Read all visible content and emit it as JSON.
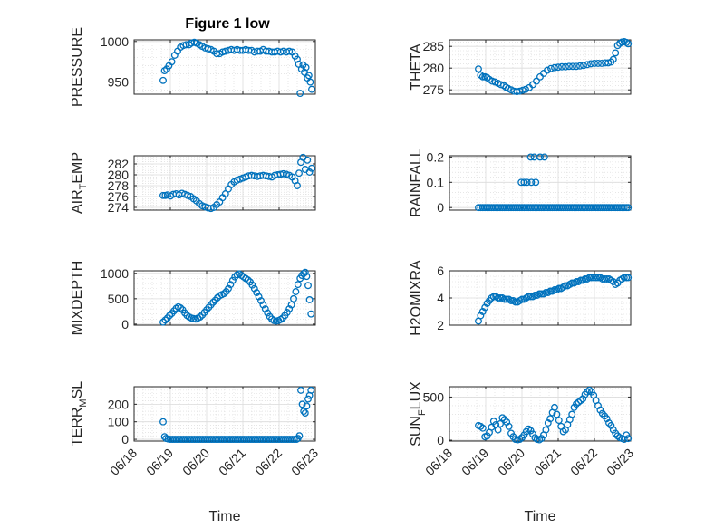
{
  "title": "Figure 1 low",
  "shared_x": {
    "label": "Time",
    "ticks": [
      "06/18",
      "06/19",
      "06/20",
      "06/21",
      "06/22",
      "06/23"
    ]
  },
  "chart_data": [
    {
      "type": "scatter",
      "ylabel": "PRESSURE",
      "ylim": [
        935,
        1002
      ],
      "yticks": [
        "950",
        "1000"
      ],
      "ytick_values": [
        950,
        1000
      ],
      "x_unit": "days since 06/18",
      "x": [
        0.8,
        0.84,
        0.9,
        0.96,
        1.04,
        1.12,
        1.2,
        1.28,
        1.36,
        1.44,
        1.52,
        1.58,
        1.66,
        1.72,
        1.8,
        1.88,
        1.96,
        2.04,
        2.12,
        2.2,
        2.28,
        2.36,
        2.44,
        2.52,
        2.6,
        2.68,
        2.76,
        2.84,
        2.92,
        3.0,
        3.08,
        3.16,
        3.24,
        3.32,
        3.4,
        3.48,
        3.56,
        3.64,
        3.72,
        3.8,
        3.88,
        3.96,
        4.04,
        4.12,
        4.2,
        4.28,
        4.36,
        4.44,
        4.5,
        4.54,
        4.58,
        4.62,
        4.66,
        4.7,
        4.74,
        4.78,
        4.82,
        4.86,
        4.9
      ],
      "y": [
        952,
        964,
        966,
        970,
        975,
        983,
        988,
        993,
        995,
        996,
        996,
        998,
        999,
        998,
        996,
        994,
        992,
        991,
        990,
        988,
        985,
        985,
        987,
        988,
        989,
        990,
        989,
        990,
        989,
        989,
        990,
        989,
        989,
        987,
        988,
        988,
        990,
        988,
        988,
        987,
        987,
        988,
        987,
        988,
        987,
        988,
        987,
        982,
        978,
        972,
        936,
        966,
        971,
        962,
        968,
        955,
        958,
        950,
        941
      ]
    },
    {
      "type": "scatter",
      "ylabel": "THETA",
      "ylim": [
        274,
        286.5
      ],
      "yticks": [
        "275",
        "280",
        "285"
      ],
      "ytick_values": [
        275,
        280,
        285
      ],
      "x_unit": "days since 06/18",
      "x": [
        0.8,
        0.86,
        0.92,
        0.98,
        1.04,
        1.1,
        1.18,
        1.26,
        1.34,
        1.42,
        1.5,
        1.56,
        1.62,
        1.7,
        1.78,
        1.86,
        1.94,
        2.02,
        2.1,
        2.2,
        2.3,
        2.4,
        2.5,
        2.6,
        2.7,
        2.8,
        2.9,
        3.0,
        3.1,
        3.2,
        3.3,
        3.4,
        3.5,
        3.6,
        3.7,
        3.8,
        3.9,
        4.0,
        4.1,
        4.2,
        4.3,
        4.38,
        4.46,
        4.52,
        4.58,
        4.64,
        4.7,
        4.76,
        4.82,
        4.88,
        4.93
      ],
      "y": [
        279.8,
        278.4,
        278.0,
        278.0,
        277.8,
        277.4,
        277.0,
        276.8,
        276.5,
        276.2,
        276.0,
        275.6,
        275.3,
        275.0,
        274.7,
        274.6,
        274.7,
        274.9,
        275.1,
        275.5,
        276.2,
        277.0,
        278.0,
        278.8,
        279.5,
        279.9,
        280.1,
        280.2,
        280.3,
        280.3,
        280.4,
        280.4,
        280.4,
        280.5,
        280.6,
        280.8,
        281.0,
        281.1,
        281.1,
        281.1,
        281.2,
        281.2,
        281.4,
        282.0,
        283.5,
        285.2,
        285.7,
        286.0,
        286.1,
        285.9,
        285.6
      ]
    },
    {
      "type": "scatter",
      "ylabel": "AIR_TEMP",
      "ylim": [
        273.5,
        283.5
      ],
      "yticks": [
        "274",
        "276",
        "278",
        "280",
        "282"
      ],
      "ytick_values": [
        274,
        276,
        278,
        280,
        282
      ],
      "x_unit": "days since 06/18",
      "x": [
        0.8,
        0.86,
        0.92,
        1.0,
        1.08,
        1.16,
        1.24,
        1.32,
        1.4,
        1.48,
        1.56,
        1.64,
        1.72,
        1.8,
        1.88,
        1.96,
        2.04,
        2.12,
        2.2,
        2.28,
        2.36,
        2.44,
        2.52,
        2.6,
        2.68,
        2.76,
        2.84,
        2.92,
        3.0,
        3.08,
        3.16,
        3.24,
        3.32,
        3.4,
        3.48,
        3.56,
        3.64,
        3.72,
        3.8,
        3.88,
        3.96,
        4.04,
        4.12,
        4.2,
        4.28,
        4.36,
        4.44,
        4.5,
        4.55,
        4.6,
        4.66,
        4.72,
        4.78,
        4.84,
        4.9
      ],
      "y": [
        276.2,
        276.2,
        276.3,
        276.1,
        276.4,
        276.5,
        276.3,
        276.6,
        276.4,
        276.2,
        276.0,
        275.6,
        275.2,
        274.7,
        274.3,
        274.1,
        273.9,
        273.8,
        274.0,
        274.5,
        275.0,
        275.8,
        276.5,
        277.4,
        278.2,
        278.7,
        279.0,
        279.2,
        279.4,
        279.6,
        279.8,
        279.9,
        279.8,
        279.7,
        279.8,
        279.9,
        279.8,
        279.7,
        279.6,
        279.9,
        280.0,
        280.1,
        280.2,
        280.1,
        279.9,
        279.6,
        278.9,
        278.0,
        280.3,
        282.3,
        283.2,
        281.0,
        282.7,
        280.5,
        281.2
      ]
    },
    {
      "type": "scatter",
      "ylabel": "RAINFALL",
      "ylim": [
        -0.01,
        0.205
      ],
      "yticks": [
        "0",
        "0.1",
        "0.2"
      ],
      "ytick_values": [
        0,
        0.1,
        0.2
      ],
      "x_unit": "days since 06/18",
      "x": [
        0.8,
        0.86,
        0.92,
        0.98,
        1.04,
        1.1,
        1.16,
        1.22,
        1.28,
        1.34,
        1.4,
        1.46,
        1.52,
        1.58,
        1.64,
        1.7,
        1.76,
        1.82,
        1.88,
        1.94,
        2.0,
        2.06,
        2.12,
        2.18,
        2.24,
        2.3,
        2.36,
        2.42,
        2.48,
        2.54,
        2.6,
        2.66,
        2.72,
        2.78,
        2.84,
        2.9,
        2.96,
        3.02,
        3.08,
        3.14,
        3.2,
        3.26,
        3.32,
        3.38,
        3.44,
        3.5,
        3.56,
        3.62,
        3.68,
        3.74,
        3.8,
        3.86,
        3.92,
        3.98,
        4.04,
        4.1,
        4.16,
        4.22,
        4.28,
        4.34,
        4.4,
        4.46,
        4.52,
        4.58,
        4.64,
        4.7,
        4.76,
        4.82,
        4.88,
        4.93,
        1.98,
        2.06,
        2.14,
        2.26,
        2.38,
        2.24,
        2.34,
        2.5,
        2.62
      ],
      "y": [
        0,
        0,
        0,
        0,
        0,
        0,
        0,
        0,
        0,
        0,
        0,
        0,
        0,
        0,
        0,
        0,
        0,
        0,
        0,
        0,
        0,
        0,
        0,
        0,
        0,
        0,
        0,
        0,
        0,
        0,
        0,
        0,
        0,
        0,
        0,
        0,
        0,
        0,
        0,
        0,
        0,
        0,
        0,
        0,
        0,
        0,
        0,
        0,
        0,
        0,
        0,
        0,
        0,
        0,
        0,
        0,
        0,
        0,
        0,
        0,
        0,
        0,
        0,
        0,
        0,
        0,
        0,
        0,
        0,
        0,
        0.1,
        0.1,
        0.1,
        0.1,
        0.1,
        0.2,
        0.2,
        0.2,
        0.2
      ]
    },
    {
      "type": "scatter",
      "ylabel": "MIXDEPTH",
      "ylim": [
        -20,
        1050
      ],
      "yticks": [
        "0",
        "500",
        "1000"
      ],
      "ytick_values": [
        0,
        500,
        1000
      ],
      "x_unit": "days since 06/18",
      "x": [
        0.8,
        0.86,
        0.92,
        0.98,
        1.04,
        1.1,
        1.16,
        1.22,
        1.28,
        1.34,
        1.4,
        1.46,
        1.52,
        1.58,
        1.64,
        1.7,
        1.76,
        1.82,
        1.88,
        1.94,
        2.0,
        2.06,
        2.12,
        2.18,
        2.24,
        2.3,
        2.36,
        2.42,
        2.48,
        2.54,
        2.6,
        2.66,
        2.72,
        2.78,
        2.84,
        2.9,
        2.96,
        3.02,
        3.08,
        3.14,
        3.2,
        3.26,
        3.32,
        3.38,
        3.44,
        3.5,
        3.56,
        3.62,
        3.68,
        3.74,
        3.8,
        3.86,
        3.92,
        3.98,
        4.04,
        4.1,
        4.16,
        4.22,
        4.28,
        4.34,
        4.4,
        4.46,
        4.52,
        4.58,
        4.63,
        4.68,
        4.72,
        4.76,
        4.8,
        4.84,
        4.88
      ],
      "y": [
        40,
        80,
        120,
        170,
        210,
        260,
        310,
        340,
        320,
        280,
        220,
        170,
        140,
        120,
        110,
        100,
        120,
        140,
        180,
        230,
        280,
        330,
        380,
        430,
        470,
        520,
        560,
        580,
        600,
        640,
        700,
        780,
        860,
        930,
        970,
        990,
        960,
        930,
        900,
        870,
        830,
        770,
        700,
        620,
        540,
        460,
        380,
        300,
        220,
        150,
        100,
        70,
        60,
        70,
        90,
        120,
        170,
        230,
        300,
        380,
        500,
        640,
        780,
        900,
        960,
        1000,
        1020,
        940,
        760,
        480,
        200
      ]
    },
    {
      "type": "scatter",
      "ylabel": "H2OMIXRA",
      "ylim": [
        2,
        6
      ],
      "yticks": [
        "2",
        "4",
        "6"
      ],
      "ytick_values": [
        2,
        4,
        6
      ],
      "x_unit": "days since 06/18",
      "x": [
        0.8,
        0.86,
        0.92,
        0.98,
        1.04,
        1.1,
        1.16,
        1.22,
        1.28,
        1.34,
        1.4,
        1.46,
        1.52,
        1.58,
        1.64,
        1.7,
        1.76,
        1.82,
        1.88,
        1.94,
        2.0,
        2.06,
        2.12,
        2.18,
        2.24,
        2.3,
        2.36,
        2.42,
        2.48,
        2.54,
        2.6,
        2.66,
        2.72,
        2.78,
        2.84,
        2.9,
        2.96,
        3.02,
        3.08,
        3.14,
        3.2,
        3.26,
        3.32,
        3.38,
        3.44,
        3.5,
        3.56,
        3.62,
        3.68,
        3.74,
        3.8,
        3.86,
        3.92,
        3.98,
        4.04,
        4.1,
        4.16,
        4.22,
        4.28,
        4.34,
        4.4,
        4.46,
        4.52,
        4.58,
        4.64,
        4.7,
        4.76,
        4.82,
        4.88,
        4.93
      ],
      "y": [
        2.3,
        2.7,
        3.0,
        3.3,
        3.6,
        3.8,
        4.0,
        4.1,
        4.1,
        4.0,
        4.0,
        4.0,
        3.9,
        3.9,
        3.9,
        3.8,
        3.8,
        3.7,
        3.7,
        3.8,
        3.9,
        3.9,
        4.0,
        4.1,
        4.1,
        4.1,
        4.2,
        4.2,
        4.3,
        4.3,
        4.3,
        4.4,
        4.4,
        4.5,
        4.5,
        4.6,
        4.6,
        4.7,
        4.7,
        4.8,
        4.9,
        4.9,
        5.0,
        5.1,
        5.1,
        5.2,
        5.2,
        5.3,
        5.3,
        5.4,
        5.4,
        5.5,
        5.5,
        5.5,
        5.5,
        5.5,
        5.5,
        5.4,
        5.4,
        5.4,
        5.4,
        5.3,
        5.2,
        5.0,
        5.1,
        5.3,
        5.4,
        5.5,
        5.5,
        5.5
      ]
    },
    {
      "type": "scatter",
      "ylabel": "TERR_MSL",
      "ylim": [
        -10,
        300
      ],
      "yticks": [
        "0",
        "100",
        "200"
      ],
      "ytick_values": [
        0,
        100,
        200
      ],
      "x_unit": "days since 06/18",
      "x": [
        0.8,
        0.84,
        0.88,
        0.94,
        1.0,
        1.06,
        1.12,
        1.18,
        1.24,
        1.3,
        1.36,
        1.42,
        1.48,
        1.54,
        1.6,
        1.66,
        1.72,
        1.78,
        1.84,
        1.9,
        1.96,
        2.02,
        2.08,
        2.14,
        2.2,
        2.26,
        2.32,
        2.38,
        2.44,
        2.5,
        2.56,
        2.62,
        2.68,
        2.74,
        2.8,
        2.86,
        2.92,
        2.98,
        3.04,
        3.1,
        3.16,
        3.22,
        3.28,
        3.34,
        3.4,
        3.46,
        3.52,
        3.58,
        3.64,
        3.7,
        3.76,
        3.82,
        3.88,
        3.94,
        4.0,
        4.06,
        4.12,
        4.18,
        4.24,
        4.3,
        4.36,
        4.42,
        4.48,
        4.52,
        4.56,
        4.6,
        4.64,
        4.68,
        4.72,
        4.76,
        4.8,
        4.84,
        4.88
      ],
      "y": [
        100,
        15,
        5,
        2,
        0,
        0,
        0,
        0,
        0,
        0,
        0,
        0,
        0,
        0,
        0,
        0,
        0,
        0,
        0,
        0,
        0,
        0,
        0,
        0,
        0,
        0,
        0,
        0,
        0,
        0,
        0,
        0,
        0,
        0,
        0,
        0,
        0,
        0,
        0,
        0,
        0,
        0,
        0,
        0,
        0,
        0,
        0,
        0,
        0,
        0,
        0,
        0,
        0,
        0,
        0,
        0,
        0,
        0,
        0,
        0,
        0,
        0,
        0,
        5,
        20,
        280,
        200,
        160,
        150,
        190,
        230,
        250,
        280
      ]
    },
    {
      "type": "scatter",
      "ylabel": "SUN_FLUX",
      "ylim": [
        -10,
        620
      ],
      "yticks": [
        "0",
        "500"
      ],
      "ytick_values": [
        0,
        500
      ],
      "x_unit": "days since 06/18",
      "x": [
        0.8,
        0.86,
        0.92,
        0.98,
        1.04,
        1.1,
        1.16,
        1.22,
        1.28,
        1.34,
        1.4,
        1.46,
        1.52,
        1.58,
        1.64,
        1.7,
        1.76,
        1.82,
        1.88,
        1.94,
        2.0,
        2.06,
        2.12,
        2.18,
        2.24,
        2.3,
        2.36,
        2.42,
        2.48,
        2.54,
        2.6,
        2.66,
        2.72,
        2.78,
        2.84,
        2.9,
        2.96,
        3.02,
        3.08,
        3.14,
        3.2,
        3.26,
        3.32,
        3.38,
        3.44,
        3.5,
        3.56,
        3.62,
        3.68,
        3.74,
        3.8,
        3.86,
        3.92,
        3.98,
        4.04,
        4.1,
        4.16,
        4.22,
        4.28,
        4.34,
        4.4,
        4.46,
        4.52,
        4.58,
        4.64,
        4.7,
        4.76,
        4.82,
        4.88,
        4.93
      ],
      "y": [
        170,
        160,
        140,
        40,
        50,
        90,
        150,
        220,
        180,
        120,
        190,
        260,
        240,
        210,
        160,
        80,
        40,
        10,
        5,
        10,
        30,
        60,
        100,
        130,
        110,
        70,
        30,
        10,
        5,
        20,
        60,
        120,
        200,
        250,
        320,
        380,
        300,
        230,
        160,
        100,
        120,
        180,
        240,
        300,
        380,
        420,
        440,
        460,
        480,
        530,
        560,
        580,
        560,
        520,
        460,
        400,
        350,
        310,
        280,
        250,
        200,
        170,
        120,
        80,
        50,
        30,
        20,
        10,
        60,
        20
      ]
    }
  ]
}
